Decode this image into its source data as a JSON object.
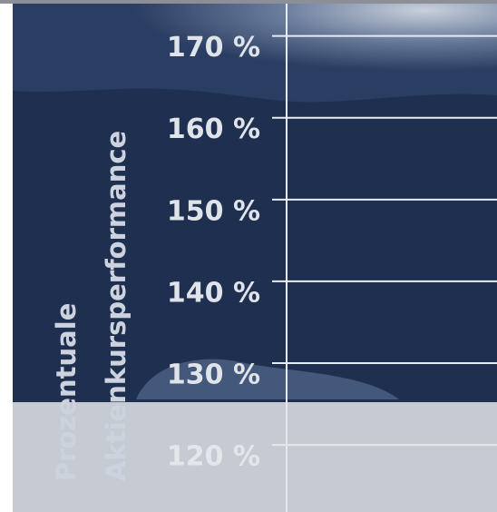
{
  "chart_data": {
    "type": "line",
    "y_label": [
      "Prozentuale",
      "Aktienkursperformance"
    ],
    "ylim": [
      111.8,
      174.4
    ],
    "yticks": [
      {
        "value": 120,
        "label": "120 %"
      },
      {
        "value": 130,
        "label": "130 %"
      },
      {
        "value": 140,
        "label": "140 %"
      },
      {
        "value": 150,
        "label": "150 %"
      },
      {
        "value": 160,
        "label": "160 %"
      },
      {
        "value": 170,
        "label": "170 %"
      }
    ],
    "grid": true,
    "series": []
  }
}
